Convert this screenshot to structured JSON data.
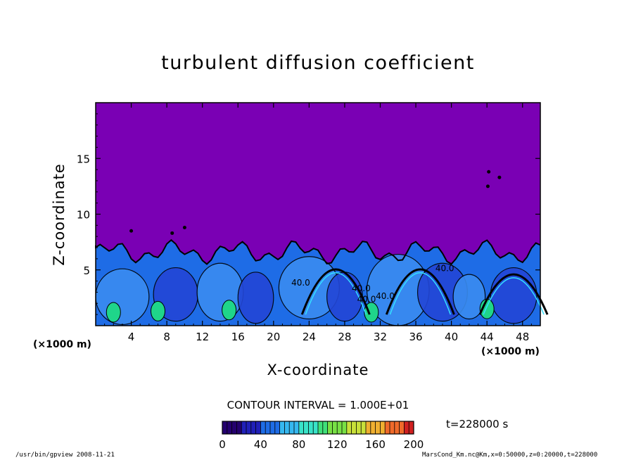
{
  "chart_data": {
    "type": "heatmap",
    "title": "turbulent diffusion coefficient",
    "xlabel": "X-coordinate",
    "ylabel": "Z-coordinate",
    "x_unit": "(×1000 m)",
    "y_unit": "(×1000 m)",
    "xlim": [
      0,
      50
    ],
    "ylim": [
      0,
      20
    ],
    "x_ticks": [
      4,
      8,
      12,
      16,
      20,
      24,
      28,
      32,
      36,
      40,
      44,
      48
    ],
    "y_ticks": [
      5,
      10,
      15
    ],
    "contour_interval": "CONTOUR INTERVAL = 1.000E+01",
    "contour_labels": [
      "40.0",
      "40.0",
      "40.0",
      "40.0",
      "40.0"
    ],
    "time_label": "t=228000 s",
    "colorbar": {
      "min": 0,
      "max": 200,
      "ticks": [
        0,
        40,
        80,
        120,
        160,
        200
      ]
    },
    "colors": {
      "background_field": "#7a00b4"
    }
  },
  "footer": {
    "program": "/usr/bin/gpview   2008-11-21",
    "source": "MarsCond_Km.nc@Km,x=0:50000,z=0:20000,t=228000"
  }
}
